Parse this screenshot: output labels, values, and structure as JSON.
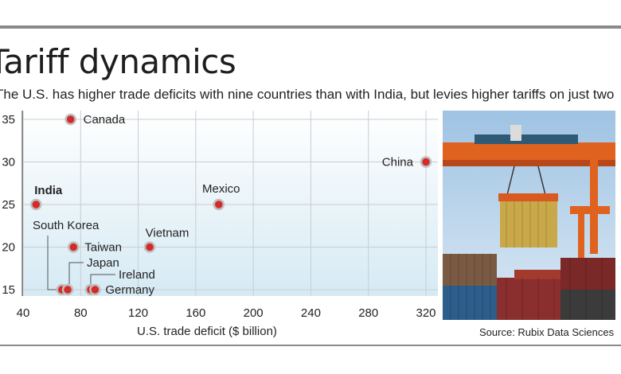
{
  "title": "Tariff dynamics",
  "subtitle": "The U.S. has higher trade deficits with nine countries than with India, but levies higher tariffs on just two",
  "source": "Source: Rubix Data Sciences",
  "colors": {
    "point": "#d42a2a",
    "background": "#dfeef6",
    "rule": "#8a8a8a"
  },
  "photo": {
    "description_icon": "container-crane-photo"
  },
  "chart_data": {
    "type": "scatter",
    "xlabel": "U.S. trade deficit ($ billion)",
    "ylabel": "",
    "xlim": [
      40,
      320
    ],
    "ylim": [
      15,
      35
    ],
    "x_ticks": [
      40,
      80,
      120,
      160,
      200,
      240,
      280,
      320
    ],
    "y_ticks": [
      35,
      30,
      25,
      20,
      15
    ],
    "grid": true,
    "points": [
      {
        "label": "Canada",
        "x": 73,
        "y": 35,
        "bold": false
      },
      {
        "label": "China",
        "x": 320,
        "y": 30,
        "bold": false
      },
      {
        "label": "India",
        "x": 49,
        "y": 25,
        "bold": true
      },
      {
        "label": "Mexico",
        "x": 176,
        "y": 25,
        "bold": false
      },
      {
        "label": "Vietnam",
        "x": 128,
        "y": 20,
        "bold": false
      },
      {
        "label": "Taiwan",
        "x": 75,
        "y": 20,
        "bold": false
      },
      {
        "label": "South Korea",
        "x": 67,
        "y": 15,
        "bold": false
      },
      {
        "label": "Japan",
        "x": 71,
        "y": 15,
        "bold": false
      },
      {
        "label": "Ireland",
        "x": 87,
        "y": 15,
        "bold": false
      },
      {
        "label": "Germany",
        "x": 90,
        "y": 15,
        "bold": false
      }
    ]
  }
}
